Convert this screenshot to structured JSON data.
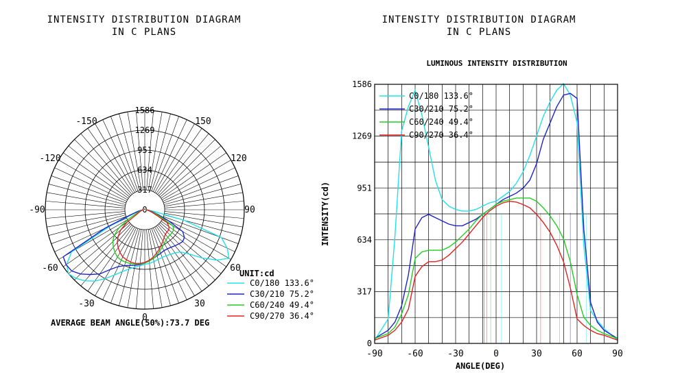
{
  "left_title": {
    "line1": "INTENSITY DISTRIBUTION DIAGRAM",
    "line2": "IN C PLANS"
  },
  "right_title": {
    "line1": "INTENSITY DISTRIBUTION DIAGRAM",
    "line2": "IN C PLANS"
  },
  "polar": {
    "unit_label": "UNIT:cd",
    "beam_angle_text": "AVERAGE BEAM ANGLE(50%):73.7 DEG"
  },
  "chart_data": [
    {
      "type": "polar-line",
      "title": "",
      "angle_labels": [
        "0",
        "30",
        "60",
        "90",
        "120",
        "150",
        "-150",
        "-120",
        "-90",
        "-60",
        "-30"
      ],
      "radial_labels": [
        "0",
        "317",
        "634",
        "951",
        "1269",
        "1586"
      ],
      "rmax": 1586,
      "legend_position": "bottom-right",
      "series": [
        {
          "name": "C0/180 133.6°",
          "color": "#22e0e8",
          "angles": [
            -90,
            -80,
            -75,
            -70,
            -65,
            -60,
            -55,
            -50,
            -45,
            -40,
            -35,
            -30,
            -25,
            -20,
            -15,
            -10,
            -5,
            0,
            5,
            10,
            15,
            20,
            25,
            30,
            35,
            40,
            45,
            50,
            55,
            60,
            65,
            70,
            75,
            80,
            90
          ],
          "values": [
            20,
            150,
            650,
            1300,
            1450,
            1550,
            1400,
            1200,
            1000,
            880,
            840,
            820,
            810,
            810,
            820,
            840,
            860,
            870,
            900,
            930,
            980,
            1050,
            1150,
            1270,
            1390,
            1480,
            1550,
            1590,
            1520,
            1350,
            600,
            200,
            140,
            90,
            20
          ]
        },
        {
          "name": "C30/210 75.2°",
          "color": "#1c22c8",
          "angles": [
            -90,
            -80,
            -75,
            -70,
            -65,
            -60,
            -55,
            -50,
            -45,
            -40,
            -35,
            -30,
            -25,
            -20,
            -15,
            -10,
            -5,
            0,
            5,
            10,
            15,
            20,
            25,
            30,
            35,
            40,
            45,
            50,
            55,
            60,
            65,
            70,
            75,
            80,
            90
          ],
          "values": [
            30,
            80,
            130,
            230,
            420,
            700,
            770,
            790,
            770,
            750,
            730,
            720,
            720,
            740,
            760,
            790,
            820,
            850,
            880,
            900,
            920,
            950,
            1000,
            1100,
            1250,
            1350,
            1450,
            1520,
            1530,
            1500,
            700,
            250,
            130,
            80,
            30
          ]
        },
        {
          "name": "C60/240 49.4°",
          "color": "#22cc22",
          "angles": [
            -90,
            -80,
            -75,
            -70,
            -65,
            -60,
            -55,
            -50,
            -45,
            -40,
            -35,
            -30,
            -25,
            -20,
            -15,
            -10,
            -5,
            0,
            5,
            10,
            15,
            20,
            25,
            30,
            35,
            40,
            45,
            50,
            55,
            60,
            65,
            70,
            75,
            80,
            90
          ],
          "values": [
            30,
            60,
            100,
            180,
            300,
            520,
            560,
            570,
            570,
            570,
            590,
            620,
            660,
            700,
            750,
            790,
            820,
            850,
            870,
            880,
            890,
            890,
            890,
            870,
            830,
            780,
            720,
            640,
            500,
            300,
            160,
            110,
            80,
            60,
            30
          ]
        },
        {
          "name": "C90/270 36.4°",
          "color": "#e02020",
          "angles": [
            -90,
            -80,
            -75,
            -70,
            -65,
            -60,
            -55,
            -50,
            -45,
            -40,
            -35,
            -30,
            -25,
            -20,
            -15,
            -10,
            -5,
            0,
            5,
            10,
            15,
            20,
            25,
            30,
            35,
            40,
            45,
            50,
            55,
            60,
            65,
            70,
            75,
            80,
            90
          ],
          "values": [
            20,
            50,
            80,
            130,
            210,
            410,
            470,
            500,
            500,
            510,
            540,
            580,
            620,
            670,
            720,
            770,
            810,
            840,
            860,
            870,
            865,
            850,
            830,
            790,
            740,
            680,
            600,
            500,
            340,
            150,
            110,
            80,
            60,
            50,
            20
          ]
        }
      ]
    },
    {
      "type": "line",
      "title": "LUMINOUS INTENSITY DISTRIBUTION",
      "xlabel": "ANGLE(DEG)",
      "ylabel": "INTENSITY(cd)",
      "xlim": [
        -90,
        90
      ],
      "ylim": [
        0,
        1586
      ],
      "x_ticks": [
        "-90",
        "-60",
        "-30",
        "0",
        "30",
        "60",
        "90"
      ],
      "y_ticks": [
        "0",
        "317",
        "634",
        "951",
        "1269",
        "1586"
      ],
      "grid": true,
      "legend_position": "top-left",
      "series": [
        {
          "name": "C0/180 133.6°",
          "color": "#22e0e8"
        },
        {
          "name": "C30/210 75.2°",
          "color": "#1c22c8"
        },
        {
          "name": "C60/240 49.4°",
          "color": "#22cc22"
        },
        {
          "name": "C90/270 36.4°",
          "color": "#e02020"
        }
      ],
      "half_max_angles": [
        -9,
        -7,
        -4,
        4,
        33,
        47,
        55,
        67
      ]
    }
  ]
}
